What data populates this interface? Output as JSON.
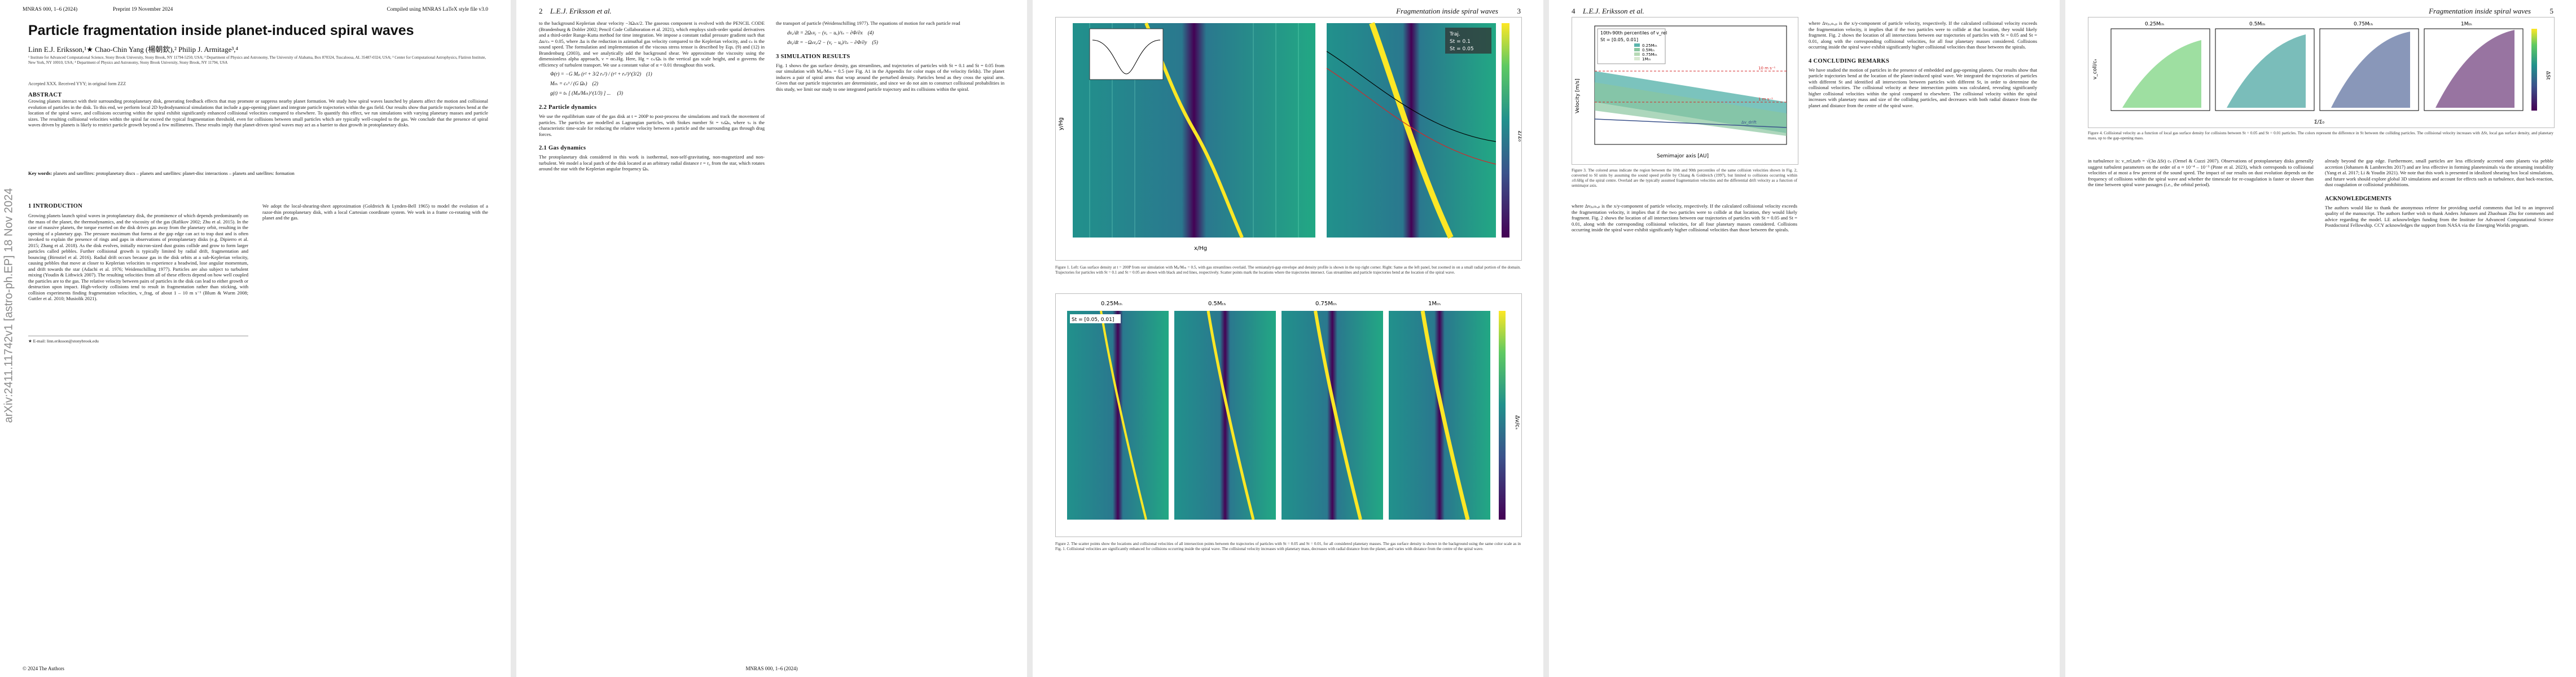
{
  "pages": {
    "p1": {
      "header_left": "MNRAS 000, 1–6 (2024)",
      "header_center": "Preprint 19 November 2024",
      "header_right": "Compiled using MNRAS LaTeX style file v3.0",
      "arxiv_stamp": "arXiv:2411.11742v1 [astro-ph.EP] 18 Nov 2024",
      "title": "Particle fragmentation inside planet-induced spiral waves",
      "authors": "Linn E.J. Eriksson,¹★ Chao-Chin Yang (楊朝欽),² Philip J. Armitage³,⁴",
      "affiliations": "¹ Institute for Advanced Computational Science, Stony Brook University, Stony Brook, NY 11794-5250, USA; ² Department of Physics and Astronomy, The University of Alabama, Box 870324, Tuscaloosa, AL 35487-0324, USA; ³ Center for Computational Astrophysics, Flatiron Institute, New York, NY 10010, USA; ⁴ Department of Physics and Astronomy, Stony Brook University, Stony Brook, NY 11794, USA",
      "accepted": "Accepted XXX. Received YYY; in original form ZZZ",
      "abstract_title": "ABSTRACT",
      "abstract": "Growing planets interact with their surrounding protoplanetary disk, generating feedback effects that may promote or suppress nearby planet formation. We study how spiral waves launched by planets affect the motion and collisional evolution of particles in the disk. To this end, we perform local 2D hydrodynamical simulations that include a gap-opening planet and integrate particle trajectories within the gas field. Our results show that particle trajectories bend at the location of the spiral wave, and collisions occurring within the spiral exhibit significantly enhanced collisional velocities compared to elsewhere. To quantify this effect, we run simulations with varying planetary masses and particle sizes. The resulting collisional velocities within the spiral far exceed the typical fragmentation threshold, even for collisions between small particles which are typically well-coupled to the gas. We conclude that the presence of spiral waves driven by planets is likely to restrict particle growth beyond a few millimetres. These results imply that planet-driven spiral waves may act as a barrier to dust growth in protoplanetary disks.",
      "keywords_label": "Key words:",
      "keywords": "planets and satellites: protoplanetary discs – planets and satellites: planet-disc interactions – planets and satellites: formation",
      "intro_title": "1 INTRODUCTION",
      "intro": "Growing planets launch spiral waves in protoplanetary disk, the prominence of which depends predominantly on the mass of the planet, the thermodynamics, and the viscosity of the gas (Rafikov 2002; Zhu et al. 2015). In the case of massive planets, the torque exerted on the disk drives gas away from the planetary orbit, resulting in the opening of a planetary gap. The pressure maximum that forms at the gap edge can act to trap dust and is often invoked to explain the presence of rings and gaps in observations of protoplanetary disks (e.g. Dipierro et al. 2015; Zhang et al. 2018). As the disk evolves, initially micron-sized dust grains collide and grow to form larger particles called pebbles. Further collisional growth is typically limited by radial drift, fragmentation and bouncing (Birnstiel et al. 2016). Radial drift occurs because gas in the disk orbits at a sub-Keplerian velocity, causing pebbles that move at closer to Keplerian velocities to experience a headwind, lose angular momentum, and drift towards the star (Adachi et al. 1976; Weidenschilling 1977). Particles are also subject to turbulent mixing (Youdin & Lithwick 2007). The resulting velocities from all of these effects depend on how well coupled the particles are to the gas. The relative velocity between pairs of particles in the disk can lead to either growth or destruction upon impact. High-velocity collisions tend to result in fragmentation rather than sticking, with collision experiments finding fragmentation velocities, v_frag, of about 1 – 10 m s⁻¹ (Blum & Wurm 2008; Guttler et al. 2010; Musiolik 2021).",
      "footnote": "★ E-mail: linn.eriksson@stonybrook.edu",
      "copyright": "© 2024 The Authors"
    },
    "p2": {
      "header_num": "2",
      "header_title": "L.E.J. Eriksson et al.",
      "footer": "MNRAS 000, 1–6 (2024)",
      "col1": "to the background Keplerian shear velocity −3Ωₖx/2. The gaseous component is evolved with the PENCIL CODE (Brandenburg & Dobler 2002; Pencil Code Collaboration et al. 2021), which employs sixth-order spatial derivatives and a third-order Runge-Kutta method for time integration. We impose a constant radial pressure gradient such that Δu/cₛ = 0.05, where Δu is the reduction in azimuthal gas velocity compared to the Keplerian velocity, and cₛ is the sound speed. The formulation and implementation of the viscous stress tensor is described by Eqs. (9) and (12) in Brandenburg (2003), and we analytically add the background shear. We approximate the viscosity using the dimensionless alpha approach, ν = αcₛHg. Here, Hg = cₛ/Ωₖ is the vertical gas scale height, and α governs the efficiency of turbulent transport. We use a constant value of α = 0.01 throughout this work.",
      "sec2_title": "2 NUMERICAL MODELLING",
      "sec2": "We adopt the local-shearing-sheet approximation (Goldreich & Lynden-Bell 1965) to model the evolution of a razor-thin protoplanetary disk, with a local Cartesian coordinate system. We work in a frame co-rotating with the planet and the gas.",
      "sec21_title": "2.1 Gas dynamics",
      "sec21": "The protoplanetary disk considered in this work is isothermal, non-self-gravitating, non-magnetized and non-turbulent. We model a local patch of the disk located at an arbitrary radial distance r = r₀ from the star, which rotates around the star with the Keplerian angular frequency Ωₖ.",
      "sec22_title": "2.2 Particle dynamics",
      "sec22": "We use the equilibrium state of the gas disk at t = 200P to post-process the simulations and track the movement of particles. The particles are modelled as Lagrangian particles, with Stokes number St = τₛΩₖ, where τₛ is the characteristic time-scale for reducing the relative velocity between a particle and the surrounding gas through drag forces.",
      "col2": "the transport of particle (Weidenschilling 1977). The equations of motion for each particle read",
      "sec3_title": "3 SIMULATION RESULTS",
      "sec3": "Fig. 1 shows the gas surface density, gas streamlines, and trajectories of particles with St = 0.1 and St = 0.05 from our simulation with Mₚ/Mₜₕ = 0.5 (see Fig. A1 in the Appendix for color maps of the velocity fields). The planet induces a pair of spiral arms that wrap around the perturbed density. Particles bend as they cross the spiral arm. Given that our particle trajectories are deterministic, and since we do not aim to construct collisional probabilities in this study, we limit our study to one integrated particle trajectory and its collisions within the spiral.",
      "fig1_caption": "Figure 1. Left: Gas surface density at t = 200P from our simulation with Mₚ/Mₜₕ = 0.5, with gas streamlines overlaid. The semianalyti-gap envelope and density profile is shown in the top right corner. Right: Same as the left panel, but zoomed in on a small radial portion of the domain. Trajectories for particles with St = 0.1 and St = 0.05 are shown with black and red lines, respectively. Scatter points mark the locations where the trajectories intersect. Gas streamlines and particle trajectories bend at the location of the spiral wave.",
      "fig2_caption": "Figure 2. The scatter points show the locations and collisional velocities of all intersection points between the trajectories of particles with St = 0.05 and St = 0.01, for all considered planetary masses. The gas surface density is shown in the background using the same color scale as in Fig. 1. Collisional velocities are significantly enhanced for collisions occurring inside the spiral wave. The collisional velocity increases with planetary mass, decreases with radial distance from the planet, and varies with distance from the centre of the spiral wave."
    },
    "p3": {
      "header_num": "3",
      "header_title": "Fragmentation inside spiral waves"
    },
    "p4": {
      "header_num": "4",
      "header_title": "L.E.J. Eriksson et al.",
      "fig3_caption": "Figure 3. The colored areas indicate the region between the 10th and 90th percentiles of the same collision velocities shown in Fig. 2, converted to SI units by assuming the sound speed profile by Chiang & Goldreich (1997), but limited to collisions occurring within ±0.6Hg of the spiral centre. Overlaid are the typically assumed fragmentation velocities and the differential drift velocity as a function of semimajor axis.",
      "col1": "where Δvₚ,ₜₕ,ₚ is the x/y-component of particle velocity, respectively. If the calculated collisional velocity exceeds the fragmentation velocity, it implies that if the two particles were to collide at that location, they would likely fragment. Fig. 2 shows the location of all intersections between our trajectories of particles with St = 0.05 and St = 0.01, along with the corresponding collisional velocities, for all four planetary masses considered. Collisions occurring inside the spiral wave exhibit significantly higher collisional velocities than those between the spirals.",
      "sec4_title": "4 CONCLUDING REMARKS",
      "col2": "We have studied the motion of particles in the presence of embedded and gap-opening planets. Our results show that particle trajectories bend at the location of the planet-induced spiral wave. We integrated the trajectories of particles with different St and identified all intersections between particles with different St, in order to determine the collisional velocities. The collisional velocity at these intersection points was calculated, revealing significantly higher collisional velocities within the spiral compared to elsewhere. The collisional velocity within the spiral increases with planetary mass and size of the colliding particles, and decreases with both radial distance from the planet and distance from the centre of the spiral wave."
    },
    "p5": {
      "header_num": "5",
      "header_title": "Fragmentation inside spiral waves",
      "fig4_caption": "Figure 4. Collisional velocity as a function of local gas surface density for collisions between St = 0.05 and St = 0.01 particles. The colors represent the difference in St between the colliding particles. The collisional velocity increases with ΔSt, local gas surface density, and planetary mass, up to the gap-opening mass.",
      "col1": "in turbulence is: v_rel,turb = √(3α ΔSt) cₛ (Ormel & Cuzzi 2007). Observations of protoplanetary disks generally suggest turbulent parameters on the order of α ≈ 10⁻⁴ – 10⁻³ (Pinte et al. 2023), which corresponds to collisional velocities of at most a few percent of the sound speed. The impact of our results on dust evolution depends on the frequency of collisions within the spiral wave and whether the timescale for re-coagulation is faster or slower than the time between spiral wave passages (i.e., the orbital period).",
      "col2": "already beyond the gap edge. Furthermore, small particles are less efficiently accreted onto planets via pebble accretion (Johansen & Lambrechts 2017) and are less effective in forming planetesimals via the streaming instability (Yang et al. 2017; Li & Youdin 2021). We note that this work is presented in idealized shearing box local simulations, and future work should explore global 3D simulations and account for effects such as turbulence, dust back-reaction, dust coagulation or collisional prohibitions.",
      "ack_title": "ACKNOWLEDGEMENTS",
      "ack": "The authors would like to thank the anonymous referee for providing useful comments that led to an improved quality of the manuscript. The authors further wish to thank Anders Johansen and Zhaohuan Zhu for comments and advice regarding the model. LE acknowledges funding from the Institute for Advanced Computational Science Postdoctoral Fellowship. CCY acknowledges the support from NASA via the Emerging Worlds program."
    }
  },
  "figures": {
    "fig1_labels": {
      "legend_a": "Traj.",
      "legend_b": "St = 0.1",
      "legend_c": "St = 0.05",
      "colorbar_label": "Σ/Σ₀",
      "xlabel": "x/Hg",
      "ylabel": "y/Hg"
    },
    "fig2_panels": [
      "0.25Mₜₕ",
      "0.5Mₜₕ",
      "0.75Mₜₕ",
      "1Mₜₕ"
    ],
    "fig2_tag": "St = [0.05, 0.01]",
    "fig2_colorbar": "Δv/cₛ",
    "fig3": {
      "title": "10th-90th percentiles of v_rel",
      "tag": "St = [0.05, 0.01]",
      "legend": [
        "0.25Mₜₕ",
        "0.5Mₜₕ",
        "0.75Mₜₕ",
        "1Mₜₕ"
      ],
      "ylabel": "Velocity [m/s]",
      "xlabel": "Semimajor axis [AU]",
      "vfrag_high": "10 m s⁻¹",
      "vfrag_low": "1 m s⁻¹",
      "drift": "Δv_drift"
    },
    "fig4": {
      "panels": [
        "0.25Mₜₕ",
        "0.5Mₜₕ",
        "0.75Mₜₕ",
        "1Mₜₕ"
      ],
      "ylabel": "v_coll/cₛ",
      "xlabel": "Σ/Σ₀",
      "colorbar": "ΔSt"
    }
  }
}
